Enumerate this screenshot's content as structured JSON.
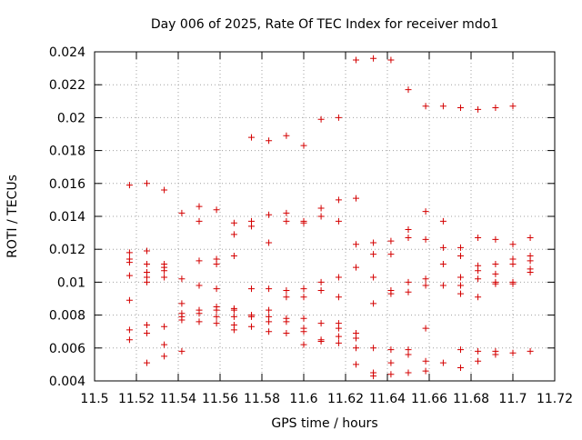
{
  "chart_data": {
    "type": "scatter",
    "title": "Day 006 of 2025, Rate Of TEC Index for receiver mdo1",
    "xlabel": "GPS time / hours",
    "ylabel": "ROTI / TECUs",
    "xlim": [
      11.5,
      11.72
    ],
    "ylim": [
      0.004,
      0.024
    ],
    "xticks": [
      11.5,
      11.52,
      11.54,
      11.56,
      11.58,
      11.6,
      11.62,
      11.64,
      11.66,
      11.68,
      11.7,
      11.72
    ],
    "xtick_labels": [
      "11.5",
      "11.52",
      "11.54",
      "11.56",
      "11.58",
      "11.6",
      "11.62",
      "11.64",
      "11.66",
      "11.68",
      "11.7",
      "11.72"
    ],
    "yticks": [
      0.004,
      0.006,
      0.008,
      0.01,
      0.012,
      0.014,
      0.016,
      0.018,
      0.02,
      0.022,
      0.024
    ],
    "ytick_labels": [
      "0.004",
      "0.006",
      "0.008",
      "0.01",
      "0.012",
      "0.014",
      "0.016",
      "0.018",
      "0.02",
      "0.022",
      "0.024"
    ],
    "grid": true,
    "marker": "+",
    "marker_color": "#d40000",
    "series": [
      {
        "name": "ROTI",
        "points": [
          [
            11.5167,
            0.0159
          ],
          [
            11.5167,
            0.0118
          ],
          [
            11.5167,
            0.0114
          ],
          [
            11.5167,
            0.0112
          ],
          [
            11.5167,
            0.0104
          ],
          [
            11.5167,
            0.0089
          ],
          [
            11.5167,
            0.0071
          ],
          [
            11.5167,
            0.0065
          ],
          [
            11.525,
            0.016
          ],
          [
            11.525,
            0.0119
          ],
          [
            11.525,
            0.0111
          ],
          [
            11.525,
            0.0106
          ],
          [
            11.525,
            0.0103
          ],
          [
            11.525,
            0.01
          ],
          [
            11.525,
            0.0074
          ],
          [
            11.525,
            0.0069
          ],
          [
            11.525,
            0.0051
          ],
          [
            11.5333,
            0.0156
          ],
          [
            11.5333,
            0.0111
          ],
          [
            11.5333,
            0.0109
          ],
          [
            11.5333,
            0.0107
          ],
          [
            11.5333,
            0.0103
          ],
          [
            11.5333,
            0.0073
          ],
          [
            11.5333,
            0.0062
          ],
          [
            11.5333,
            0.0055
          ],
          [
            11.5417,
            0.0142
          ],
          [
            11.5417,
            0.0102
          ],
          [
            11.5417,
            0.0087
          ],
          [
            11.5417,
            0.0081
          ],
          [
            11.5417,
            0.0079
          ],
          [
            11.5417,
            0.0077
          ],
          [
            11.5417,
            0.0058
          ],
          [
            11.55,
            0.0146
          ],
          [
            11.55,
            0.0137
          ],
          [
            11.55,
            0.0113
          ],
          [
            11.55,
            0.0098
          ],
          [
            11.55,
            0.0083
          ],
          [
            11.55,
            0.0081
          ],
          [
            11.55,
            0.0076
          ],
          [
            11.5583,
            0.0144
          ],
          [
            11.5583,
            0.0114
          ],
          [
            11.5583,
            0.0111
          ],
          [
            11.5583,
            0.0096
          ],
          [
            11.5583,
            0.0085
          ],
          [
            11.5583,
            0.0083
          ],
          [
            11.5583,
            0.0079
          ],
          [
            11.5583,
            0.0075
          ],
          [
            11.5667,
            0.0136
          ],
          [
            11.5667,
            0.0129
          ],
          [
            11.5667,
            0.0116
          ],
          [
            11.5667,
            0.0084
          ],
          [
            11.5667,
            0.0083
          ],
          [
            11.5667,
            0.0079
          ],
          [
            11.5667,
            0.0074
          ],
          [
            11.5667,
            0.0071
          ],
          [
            11.575,
            0.0188
          ],
          [
            11.575,
            0.0137
          ],
          [
            11.575,
            0.0134
          ],
          [
            11.575,
            0.0096
          ],
          [
            11.575,
            0.008
          ],
          [
            11.575,
            0.0079
          ],
          [
            11.575,
            0.0073
          ],
          [
            11.5833,
            0.0186
          ],
          [
            11.5833,
            0.0141
          ],
          [
            11.5833,
            0.0124
          ],
          [
            11.5833,
            0.0096
          ],
          [
            11.5833,
            0.0083
          ],
          [
            11.5833,
            0.0079
          ],
          [
            11.5833,
            0.0076
          ],
          [
            11.5833,
            0.007
          ],
          [
            11.5917,
            0.0189
          ],
          [
            11.5917,
            0.0142
          ],
          [
            11.5917,
            0.0137
          ],
          [
            11.5917,
            0.0095
          ],
          [
            11.5917,
            0.0091
          ],
          [
            11.5917,
            0.0078
          ],
          [
            11.5917,
            0.0076
          ],
          [
            11.5917,
            0.0069
          ],
          [
            11.6,
            0.0183
          ],
          [
            11.6,
            0.0137
          ],
          [
            11.6,
            0.0136
          ],
          [
            11.6,
            0.0096
          ],
          [
            11.6,
            0.0091
          ],
          [
            11.6,
            0.0078
          ],
          [
            11.6,
            0.0072
          ],
          [
            11.6,
            0.007
          ],
          [
            11.6,
            0.0062
          ],
          [
            11.6083,
            0.0199
          ],
          [
            11.6083,
            0.0145
          ],
          [
            11.6083,
            0.014
          ],
          [
            11.6083,
            0.01
          ],
          [
            11.6083,
            0.0095
          ],
          [
            11.6083,
            0.0075
          ],
          [
            11.6083,
            0.0065
          ],
          [
            11.6083,
            0.0064
          ],
          [
            11.6167,
            0.02
          ],
          [
            11.6167,
            0.015
          ],
          [
            11.6167,
            0.0137
          ],
          [
            11.6167,
            0.0103
          ],
          [
            11.6167,
            0.0091
          ],
          [
            11.6167,
            0.0075
          ],
          [
            11.6167,
            0.0072
          ],
          [
            11.6167,
            0.0067
          ],
          [
            11.6167,
            0.0063
          ],
          [
            11.625,
            0.0235
          ],
          [
            11.625,
            0.0151
          ],
          [
            11.625,
            0.0123
          ],
          [
            11.625,
            0.0109
          ],
          [
            11.625,
            0.0069
          ],
          [
            11.625,
            0.0066
          ],
          [
            11.625,
            0.006
          ],
          [
            11.625,
            0.005
          ],
          [
            11.6333,
            0.0236
          ],
          [
            11.6333,
            0.0124
          ],
          [
            11.6333,
            0.0117
          ],
          [
            11.6333,
            0.0103
          ],
          [
            11.6333,
            0.0087
          ],
          [
            11.6333,
            0.006
          ],
          [
            11.6333,
            0.0045
          ],
          [
            11.6333,
            0.0043
          ],
          [
            11.6417,
            0.0235
          ],
          [
            11.6417,
            0.0125
          ],
          [
            11.6417,
            0.0117
          ],
          [
            11.6417,
            0.0095
          ],
          [
            11.6417,
            0.0093
          ],
          [
            11.6417,
            0.0059
          ],
          [
            11.6417,
            0.0051
          ],
          [
            11.6417,
            0.0044
          ],
          [
            11.65,
            0.0217
          ],
          [
            11.65,
            0.0132
          ],
          [
            11.65,
            0.0127
          ],
          [
            11.65,
            0.01
          ],
          [
            11.65,
            0.0094
          ],
          [
            11.65,
            0.0059
          ],
          [
            11.65,
            0.0056
          ],
          [
            11.65,
            0.0045
          ],
          [
            11.6583,
            0.0207
          ],
          [
            11.6583,
            0.0143
          ],
          [
            11.6583,
            0.0126
          ],
          [
            11.6583,
            0.0102
          ],
          [
            11.6583,
            0.0098
          ],
          [
            11.6583,
            0.0072
          ],
          [
            11.6583,
            0.0052
          ],
          [
            11.6583,
            0.0046
          ],
          [
            11.6667,
            0.0207
          ],
          [
            11.6667,
            0.0137
          ],
          [
            11.6667,
            0.0121
          ],
          [
            11.6667,
            0.0111
          ],
          [
            11.6667,
            0.0098
          ],
          [
            11.6667,
            0.0051
          ],
          [
            11.675,
            0.0206
          ],
          [
            11.675,
            0.0121
          ],
          [
            11.675,
            0.0116
          ],
          [
            11.675,
            0.0103
          ],
          [
            11.675,
            0.0098
          ],
          [
            11.675,
            0.0093
          ],
          [
            11.675,
            0.0059
          ],
          [
            11.675,
            0.0048
          ],
          [
            11.6833,
            0.0205
          ],
          [
            11.6833,
            0.0127
          ],
          [
            11.6833,
            0.011
          ],
          [
            11.6833,
            0.0107
          ],
          [
            11.6833,
            0.0102
          ],
          [
            11.6833,
            0.0091
          ],
          [
            11.6833,
            0.0058
          ],
          [
            11.6833,
            0.0052
          ],
          [
            11.6917,
            0.0206
          ],
          [
            11.6917,
            0.0126
          ],
          [
            11.6917,
            0.0111
          ],
          [
            11.6917,
            0.0105
          ],
          [
            11.6917,
            0.01
          ],
          [
            11.6917,
            0.0099
          ],
          [
            11.6917,
            0.0058
          ],
          [
            11.6917,
            0.0056
          ],
          [
            11.7,
            0.0207
          ],
          [
            11.7,
            0.0123
          ],
          [
            11.7,
            0.0114
          ],
          [
            11.7,
            0.0111
          ],
          [
            11.7,
            0.01
          ],
          [
            11.7,
            0.0099
          ],
          [
            11.7,
            0.0057
          ],
          [
            11.7083,
            0.0127
          ],
          [
            11.7083,
            0.0116
          ],
          [
            11.7083,
            0.0113
          ],
          [
            11.7083,
            0.0108
          ],
          [
            11.7083,
            0.0106
          ],
          [
            11.7083,
            0.0058
          ]
        ]
      }
    ]
  }
}
